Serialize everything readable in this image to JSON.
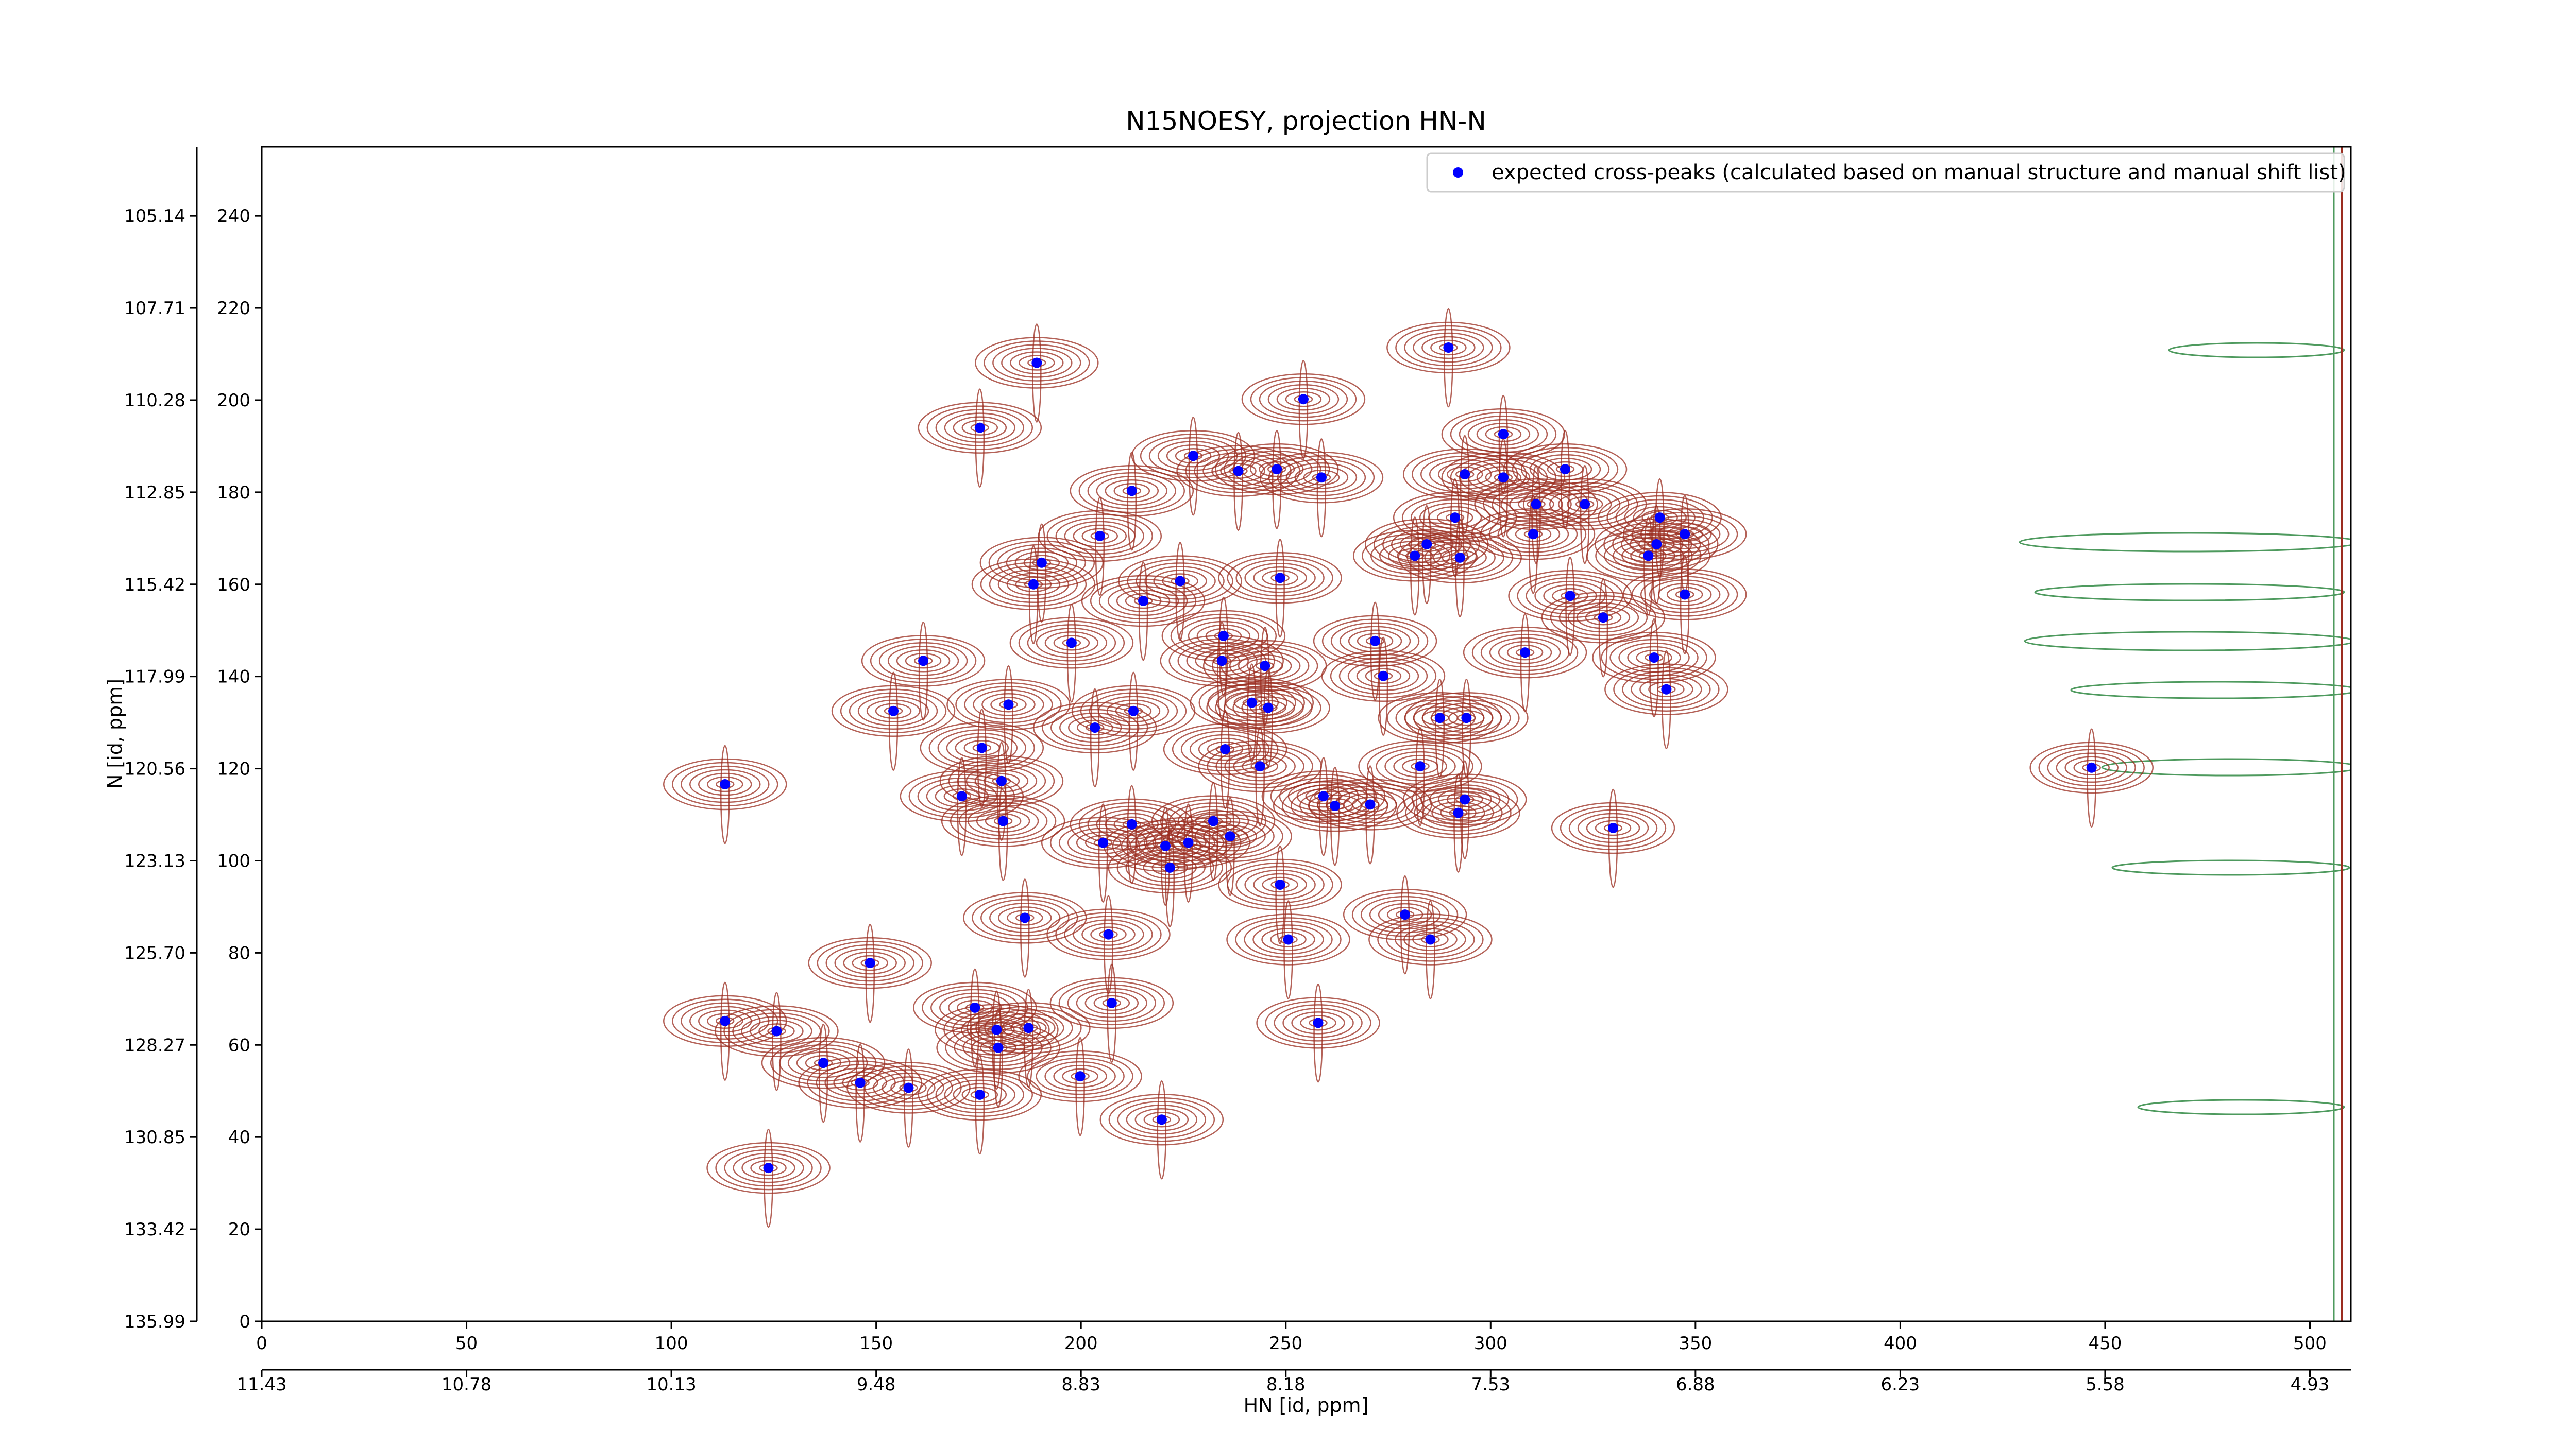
{
  "chart_data": {
    "type": "scatter",
    "title": "N15NOESY, projection HN-N",
    "x_label": "HN [id, ppm]",
    "y_label": "N [id, ppm]",
    "xlim": [
      0,
      510
    ],
    "ylim": [
      0,
      255
    ],
    "xticks": [
      0,
      50,
      100,
      150,
      200,
      250,
      300,
      350,
      400,
      450,
      500
    ],
    "yticks": [
      0,
      20,
      40,
      60,
      80,
      100,
      120,
      140,
      160,
      180,
      200,
      220,
      240
    ],
    "x2ticks": [
      {
        "value": 0,
        "label": "11.43"
      },
      {
        "value": 50,
        "label": "10.78"
      },
      {
        "value": 100,
        "label": "10.13"
      },
      {
        "value": 150,
        "label": "9.48"
      },
      {
        "value": 200,
        "label": "8.83"
      },
      {
        "value": 250,
        "label": "8.18"
      },
      {
        "value": 300,
        "label": "7.53"
      },
      {
        "value": 350,
        "label": "6.88"
      },
      {
        "value": 400,
        "label": "6.23"
      },
      {
        "value": 450,
        "label": "5.58"
      },
      {
        "value": 500,
        "label": "4.93"
      }
    ],
    "y2ticks": [
      {
        "value": 0,
        "label": "135.99"
      },
      {
        "value": 20,
        "label": "133.42"
      },
      {
        "value": 40,
        "label": "130.85"
      },
      {
        "value": 60,
        "label": "128.27"
      },
      {
        "value": 80,
        "label": "125.70"
      },
      {
        "value": 100,
        "label": "123.13"
      },
      {
        "value": 120,
        "label": "120.56"
      },
      {
        "value": 140,
        "label": "117.99"
      },
      {
        "value": 160,
        "label": "115.42"
      },
      {
        "value": 180,
        "label": "112.85"
      },
      {
        "value": 200,
        "label": "110.28"
      },
      {
        "value": 220,
        "label": "107.71"
      },
      {
        "value": 240,
        "label": "105.14"
      }
    ],
    "legend_position": "upper right",
    "x": [
      289.7,
      189.2,
      254.3,
      175.3,
      303.1,
      227.4,
      318.2,
      238.4,
      247.8,
      258.7,
      293.7,
      303.1,
      212.4,
      323.0,
      311.1,
      341.3,
      291.3,
      204.6,
      310.4,
      347.4,
      284.4,
      340.5,
      281.5,
      292.5,
      338.5,
      190.4,
      248.6,
      224.2,
      188.4,
      215.2,
      319.4,
      347.4,
      327.5,
      234.8,
      271.8,
      197.7,
      308.4,
      339.9,
      161.5,
      234.4,
      244.9,
      273.8,
      342.9,
      182.3,
      241.7,
      245.7,
      154.2,
      212.8,
      287.6,
      294.1,
      203.4,
      175.8,
      235.2,
      243.7,
      282.8,
      113.1,
      446.7,
      180.6,
      170.9,
      259.2,
      293.7,
      262.0,
      270.6,
      292.1,
      181.0,
      212.4,
      232.3,
      329.9,
      205.4,
      236.4,
      220.6,
      226.2,
      221.7,
      248.6,
      186.3,
      279.1,
      206.7,
      250.6,
      285.3,
      148.5,
      207.5,
      174.1,
      113.1,
      257.9,
      187.2,
      179.4,
      125.7,
      179.8,
      137.1,
      199.8,
      146.1,
      157.9,
      175.3,
      219.7,
      123.7
    ],
    "series": [
      {
        "name": "expected cross-peaks (calculated based on manual structure and manual shift list)",
        "color": "#0000ff",
        "values": [
          211.4,
          208.1,
          200.2,
          194.0,
          192.6,
          187.9,
          185.0,
          184.6,
          185.0,
          183.2,
          183.9,
          183.2,
          180.3,
          177.4,
          177.4,
          174.5,
          174.5,
          170.5,
          170.9,
          170.9,
          168.7,
          168.7,
          166.2,
          165.8,
          166.2,
          164.7,
          161.4,
          160.7,
          160.0,
          156.4,
          157.5,
          157.8,
          152.8,
          148.8,
          147.7,
          147.3,
          145.2,
          144.1,
          143.4,
          143.4,
          142.3,
          140.1,
          137.2,
          133.9,
          134.3,
          133.2,
          132.5,
          132.5,
          131.0,
          131.0,
          128.9,
          124.5,
          124.2,
          120.5,
          120.5,
          116.6,
          120.2,
          117.3,
          114.0,
          114.0,
          113.3,
          111.9,
          112.2,
          110.4,
          108.6,
          107.9,
          108.6,
          107.1,
          103.9,
          105.3,
          103.2,
          103.9,
          98.5,
          94.8,
          87.6,
          88.3,
          84.0,
          82.9,
          82.9,
          77.8,
          69.1,
          68.1,
          65.2,
          64.8,
          63.7,
          63.3,
          63.0,
          59.4,
          56.1,
          53.2,
          51.8,
          50.7,
          49.2,
          43.8,
          33.3
        ]
      }
    ]
  }
}
